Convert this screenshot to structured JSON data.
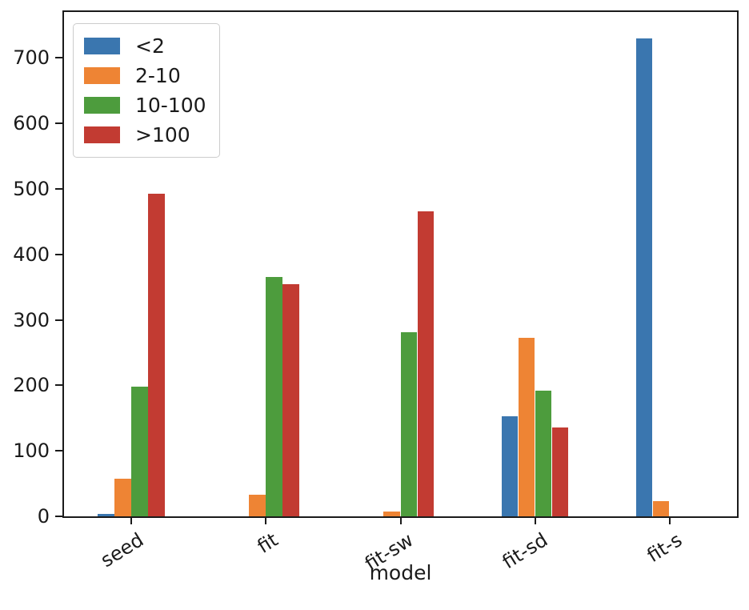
{
  "figure": {
    "background": "#ffffff",
    "text_color": "#1a1a1a",
    "spine_color": "#1a1a1a"
  },
  "chart_data": {
    "type": "bar",
    "title": "",
    "xlabel": "model",
    "ylabel": "",
    "categories": [
      "seed",
      "fit",
      "fit-sw",
      "fit-sd",
      "fit-s"
    ],
    "series": [
      {
        "name": "<2",
        "color": "#3a76af",
        "values": [
          4,
          0,
          0,
          153,
          730
        ]
      },
      {
        "name": "2-10",
        "color": "#ee8434",
        "values": [
          57,
          33,
          7,
          273,
          23
        ]
      },
      {
        "name": "10-100",
        "color": "#4d9c3d",
        "values": [
          198,
          366,
          281,
          192,
          0
        ]
      },
      {
        "name": ">100",
        "color": "#c23b32",
        "values": [
          493,
          354,
          466,
          136,
          0
        ]
      }
    ],
    "ylim": [
      0,
      770
    ],
    "yticks": [
      0,
      100,
      200,
      300,
      400,
      500,
      600,
      700
    ],
    "grid": false,
    "legend_position": "upper-left",
    "bar_group_width_fraction": 0.5,
    "xtick_rotation_deg": 32
  }
}
